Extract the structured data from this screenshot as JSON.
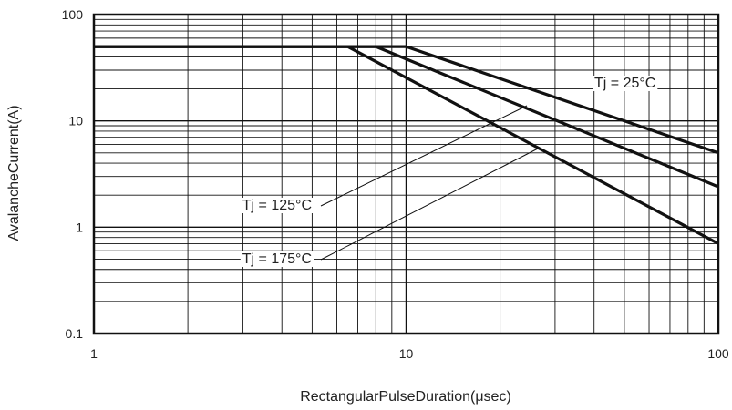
{
  "chart_data": {
    "type": "line",
    "title": "",
    "xlabel": "RectangularPulseDuration(μsec)",
    "ylabel": "AvalancheCurrent(A)",
    "x_scale": "log",
    "y_scale": "log",
    "xlim": [
      1,
      100
    ],
    "ylim": [
      0.1,
      100
    ],
    "x_ticks": [
      "1",
      "10",
      "100"
    ],
    "y_ticks": [
      "0.1",
      "1",
      "10",
      "100"
    ],
    "grid": true,
    "series": [
      {
        "name": "Tj = 25°C",
        "x": [
          1,
          10,
          100
        ],
        "y": [
          50,
          50,
          5
        ]
      },
      {
        "name": "Tj = 125°C",
        "x": [
          1,
          8,
          100
        ],
        "y": [
          50,
          50,
          2.4
        ]
      },
      {
        "name": "Tj = 175°C",
        "x": [
          1,
          6.5,
          100
        ],
        "y": [
          50,
          50,
          0.7
        ]
      }
    ]
  }
}
